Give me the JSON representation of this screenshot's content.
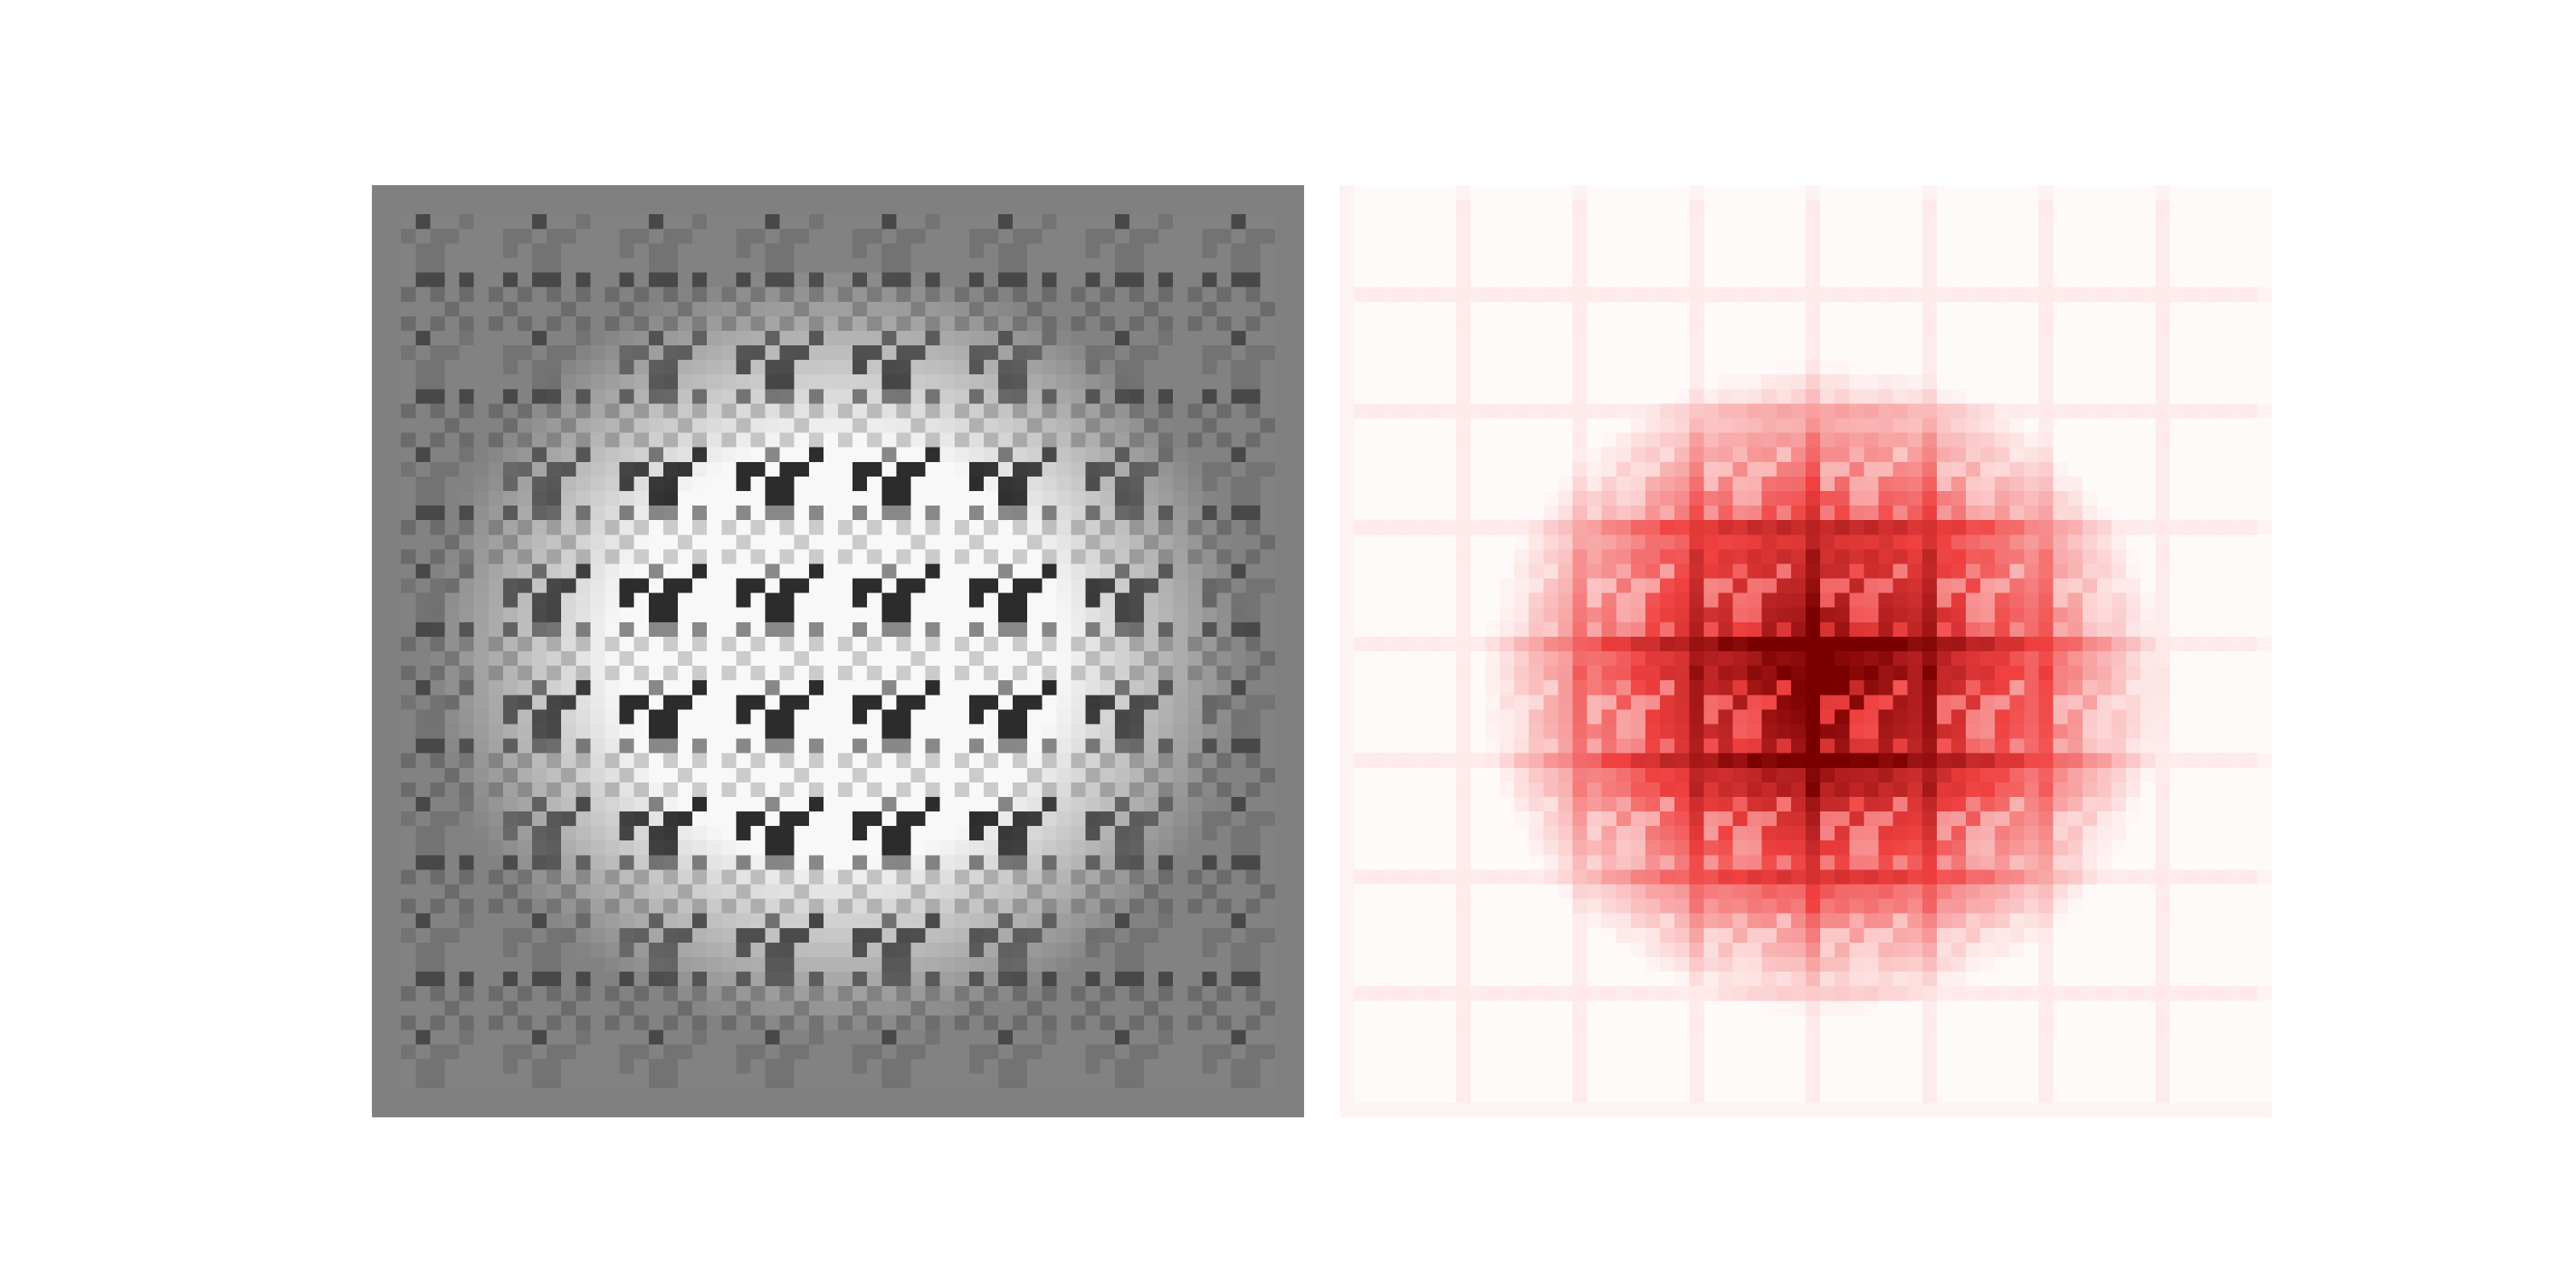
{
  "figure": {
    "panels": [
      {
        "id": "grayscale-pattern",
        "colormap": "gray",
        "grid_cells": 64,
        "tile_repeats": 8
      },
      {
        "id": "red-heat-pattern",
        "colormap": "reds",
        "grid_cells": 64,
        "tile_repeats": 8
      }
    ],
    "colors": {
      "background": "#ffffff",
      "gray_border": "#808080",
      "red_dark": "#7a0000",
      "red_mid": "#f04040",
      "red_light": "#fff5f5"
    }
  }
}
